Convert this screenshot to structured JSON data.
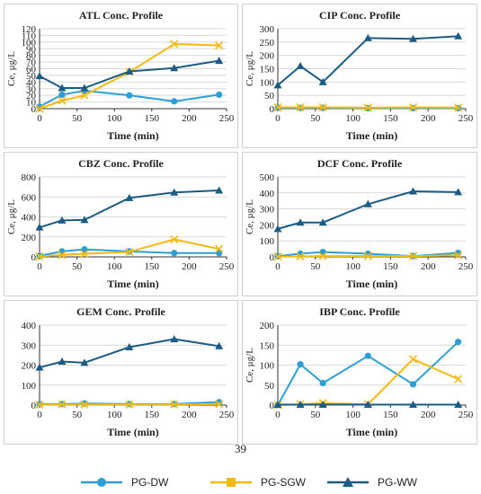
{
  "colors": {
    "dw": "#2e9fd6",
    "sgw": "#f5b90f",
    "ww": "#1b5c86",
    "grid": "#d9d9d9",
    "axis": "#333333"
  },
  "page_number": "39",
  "legend": [
    {
      "label": "PG-DW",
      "marker": "circle",
      "color": "#2e9fd6"
    },
    {
      "label": "PG-SGW",
      "marker": "square",
      "color": "#f5b90f"
    },
    {
      "label": "PG-WW",
      "marker": "triangle",
      "color": "#1b5c86"
    }
  ],
  "chart_data": [
    {
      "type": "line",
      "title": "ATL Conc. Profile",
      "xlabel": "Time (min)",
      "ylabel": "Ce, μg/L",
      "xlim": [
        0,
        250
      ],
      "xticks": [
        0,
        50,
        100,
        150,
        200,
        250
      ],
      "ylim": [
        0,
        120
      ],
      "yticks": [
        0,
        10,
        20,
        30,
        40,
        50,
        60,
        70,
        80,
        90,
        100,
        110,
        120
      ],
      "grid": true,
      "x": [
        0,
        30,
        60,
        120,
        180,
        240
      ],
      "series": [
        {
          "name": "PG-DW",
          "values": [
            3,
            21,
            27,
            20,
            11,
            21
          ]
        },
        {
          "name": "PG-SGW",
          "values": [
            0,
            12,
            20,
            55,
            97,
            95
          ]
        },
        {
          "name": "PG-WW",
          "values": [
            49,
            31,
            31,
            56,
            61,
            72
          ]
        }
      ]
    },
    {
      "type": "line",
      "title": "CIP Conc. Profile",
      "xlabel": "Time (min)",
      "ylabel": "Ce, μg/L",
      "xlim": [
        0,
        250
      ],
      "xticks": [
        0,
        50,
        100,
        150,
        200,
        250
      ],
      "ylim": [
        0,
        300
      ],
      "yticks": [
        0,
        50,
        100,
        150,
        200,
        250,
        300
      ],
      "grid": true,
      "x": [
        0,
        30,
        60,
        120,
        180,
        240
      ],
      "series": [
        {
          "name": "PG-DW",
          "values": [
            3,
            3,
            3,
            2,
            2,
            2
          ]
        },
        {
          "name": "PG-SGW",
          "values": [
            5,
            5,
            5,
            4,
            5,
            4
          ]
        },
        {
          "name": "PG-WW",
          "values": [
            88,
            160,
            100,
            265,
            262,
            272
          ]
        }
      ]
    },
    {
      "type": "line",
      "title": "CBZ Conc. Profile",
      "xlabel": "Time (min)",
      "ylabel": "Ce, μg/L",
      "xlim": [
        0,
        250
      ],
      "xticks": [
        0,
        50,
        100,
        150,
        200,
        250
      ],
      "ylim": [
        0,
        800
      ],
      "yticks": [
        0,
        200,
        400,
        600,
        800
      ],
      "grid": true,
      "x": [
        0,
        30,
        60,
        120,
        180,
        240
      ],
      "series": [
        {
          "name": "PG-DW",
          "values": [
            10,
            55,
            75,
            55,
            38,
            38
          ]
        },
        {
          "name": "PG-SGW",
          "values": [
            5,
            20,
            30,
            50,
            175,
            80
          ]
        },
        {
          "name": "PG-WW",
          "values": [
            295,
            365,
            370,
            590,
            645,
            665
          ]
        }
      ]
    },
    {
      "type": "line",
      "title": "DCF Conc. Profile",
      "xlabel": "Time (min)",
      "ylabel": "Ce, μg/L",
      "xlim": [
        0,
        250
      ],
      "xticks": [
        0,
        50,
        100,
        150,
        200,
        250
      ],
      "ylim": [
        0,
        500
      ],
      "yticks": [
        0,
        100,
        200,
        300,
        400,
        500
      ],
      "grid": true,
      "x": [
        0,
        30,
        60,
        120,
        180,
        240
      ],
      "series": [
        {
          "name": "PG-DW",
          "values": [
            5,
            20,
            30,
            20,
            5,
            25
          ]
        },
        {
          "name": "PG-SGW",
          "values": [
            2,
            3,
            5,
            5,
            5,
            10
          ]
        },
        {
          "name": "PG-WW",
          "values": [
            175,
            215,
            215,
            330,
            410,
            405
          ]
        }
      ]
    },
    {
      "type": "line",
      "title": "GEM Conc. Profile",
      "xlabel": "Time (min)",
      "ylabel": "",
      "xlim": [
        0,
        250
      ],
      "xticks": [
        0,
        50,
        100,
        150,
        200,
        250
      ],
      "ylim": [
        0,
        400
      ],
      "yticks": [
        0,
        100,
        200,
        300,
        400
      ],
      "grid": true,
      "x": [
        0,
        30,
        60,
        120,
        180,
        240
      ],
      "series": [
        {
          "name": "PG-DW",
          "values": [
            5,
            5,
            8,
            5,
            5,
            15
          ]
        },
        {
          "name": "PG-SGW",
          "values": [
            2,
            3,
            3,
            3,
            3,
            5
          ]
        },
        {
          "name": "PG-WW",
          "values": [
            188,
            218,
            212,
            290,
            330,
            295
          ]
        }
      ]
    },
    {
      "type": "line",
      "title": "IBP Conc. Profile",
      "xlabel": "Time (min)",
      "ylabel": "Ce, μg/L",
      "xlim": [
        0,
        250
      ],
      "xticks": [
        0,
        50,
        100,
        150,
        200,
        250
      ],
      "ylim": [
        0,
        200
      ],
      "yticks": [
        0,
        50,
        100,
        150,
        200
      ],
      "grid": true,
      "x": [
        0,
        30,
        60,
        120,
        180,
        240
      ],
      "series": [
        {
          "name": "PG-DW",
          "values": [
            0,
            102,
            55,
            123,
            52,
            158
          ]
        },
        {
          "name": "PG-SGW",
          "values": [
            0,
            2,
            5,
            2,
            115,
            65
          ]
        },
        {
          "name": "PG-WW",
          "values": [
            1,
            1,
            1,
            1,
            1,
            1
          ]
        }
      ]
    }
  ]
}
